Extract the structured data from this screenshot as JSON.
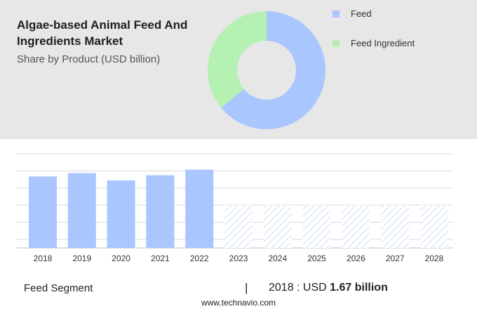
{
  "header": {
    "title": "Algae-based Animal Feed And Ingredients Market",
    "subtitle": "Share by Product (USD billion)"
  },
  "colors": {
    "feed": "#a9c6ff",
    "feed_ingredient": "#b4f1b2",
    "forecast_hatch": "#c4d6f7",
    "gridline": "#d9d9d9",
    "panel_bg": "#e7e7e7"
  },
  "chart_data": [
    {
      "type": "pie",
      "variant": "donut",
      "slices": [
        {
          "name": "Feed",
          "value": 64
        },
        {
          "name": "Feed Ingredient",
          "value": 36
        }
      ],
      "legend": [
        "Feed",
        "Feed Ingredient"
      ],
      "legend_position": "right"
    },
    {
      "type": "bar",
      "categories": [
        "2018",
        "2019",
        "2020",
        "2021",
        "2022",
        "2023",
        "2024",
        "2025",
        "2026",
        "2027",
        "2028"
      ],
      "values": [
        1.67,
        1.75,
        1.58,
        1.7,
        1.83,
        1.0,
        1.0,
        1.0,
        1.0,
        1.0,
        1.0
      ],
      "forecast_from": "2023",
      "ylim": [
        0,
        2.3
      ],
      "grid": true
    }
  ],
  "footer": {
    "segment_label": "Feed Segment",
    "separator": "|",
    "year_text": "2018 : USD ",
    "value_text": "1.67 billion",
    "source": "www.technavio.com"
  }
}
